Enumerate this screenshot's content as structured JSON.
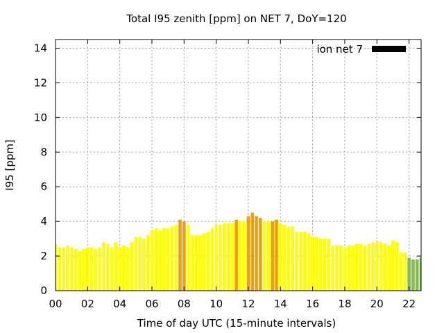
{
  "chart_data": {
    "type": "bar",
    "title": "Total I95 zenith [ppm] on NET 7, DoY=120",
    "xlabel": "Time of day UTC (15-minute intervals)",
    "ylabel": "I95 [ppm]",
    "xlim": [
      0,
      22.75
    ],
    "ylim": [
      0,
      14.5
    ],
    "x_tick_labels": [
      "00",
      "02",
      "04",
      "06",
      "08",
      "10",
      "12",
      "14",
      "16",
      "18",
      "20",
      "22"
    ],
    "x_tick_values": [
      0,
      2,
      4,
      6,
      8,
      10,
      12,
      14,
      16,
      18,
      20,
      22
    ],
    "y_tick_values": [
      0,
      2,
      4,
      6,
      8,
      10,
      12,
      14
    ],
    "y_tick_labels": [
      "0",
      "2",
      "4",
      "6",
      "8",
      "10",
      "12",
      "14"
    ],
    "grid": true,
    "legend": {
      "label": "ion net 7",
      "position": "top-right",
      "color": "#000000"
    },
    "bar_interval_hours": 0.25,
    "bar_colors": {
      "yellow": "#ffff00",
      "orange": "#f0a000",
      "green": "#80c040"
    },
    "series": [
      {
        "values": [
          2.7,
          2.5,
          2.5,
          2.6,
          2.5,
          2.4,
          2.3,
          2.4,
          2.5,
          2.5,
          2.4,
          2.5,
          2.8,
          2.7,
          2.5,
          2.8,
          2.5,
          2.6,
          2.5,
          2.8,
          3.1,
          3.1,
          3.0,
          3.2,
          3.5,
          3.6,
          3.5,
          3.6,
          3.6,
          3.7,
          3.8,
          4.1,
          4.0,
          3.8,
          3.2,
          3.2,
          3.2,
          3.3,
          3.4,
          3.6,
          3.8,
          3.8,
          3.9,
          3.9,
          3.9,
          4.1,
          4.0,
          4.0,
          4.3,
          4.5,
          4.3,
          4.2,
          4.0,
          4.0,
          4.0,
          4.1,
          3.9,
          3.8,
          3.7,
          3.7,
          3.4,
          3.4,
          3.4,
          3.3,
          3.1,
          3.1,
          3.0,
          3.0,
          3.0,
          2.6,
          2.6,
          2.6,
          2.5,
          2.6,
          2.6,
          2.7,
          2.7,
          2.6,
          2.7,
          2.8,
          2.8,
          2.8,
          2.7,
          2.6,
          2.9,
          2.8,
          2.2,
          2.2,
          1.9,
          1.8,
          1.8,
          1.9
        ],
        "colors": [
          "yellow",
          "yellow",
          "yellow",
          "yellow",
          "yellow",
          "yellow",
          "yellow",
          "yellow",
          "yellow",
          "yellow",
          "yellow",
          "yellow",
          "yellow",
          "yellow",
          "yellow",
          "yellow",
          "yellow",
          "yellow",
          "yellow",
          "yellow",
          "yellow",
          "yellow",
          "yellow",
          "yellow",
          "yellow",
          "yellow",
          "yellow",
          "yellow",
          "yellow",
          "yellow",
          "yellow",
          "orange",
          "orange",
          "yellow",
          "yellow",
          "yellow",
          "yellow",
          "yellow",
          "yellow",
          "yellow",
          "yellow",
          "yellow",
          "yellow",
          "yellow",
          "yellow",
          "orange",
          "yellow",
          "yellow",
          "orange",
          "orange",
          "orange",
          "orange",
          "yellow",
          "yellow",
          "orange",
          "orange",
          "yellow",
          "yellow",
          "yellow",
          "yellow",
          "yellow",
          "yellow",
          "yellow",
          "yellow",
          "yellow",
          "yellow",
          "yellow",
          "yellow",
          "yellow",
          "yellow",
          "yellow",
          "yellow",
          "yellow",
          "yellow",
          "yellow",
          "yellow",
          "yellow",
          "yellow",
          "yellow",
          "yellow",
          "yellow",
          "yellow",
          "yellow",
          "yellow",
          "yellow",
          "yellow",
          "yellow",
          "yellow",
          "green",
          "green",
          "green",
          "green"
        ]
      }
    ]
  }
}
